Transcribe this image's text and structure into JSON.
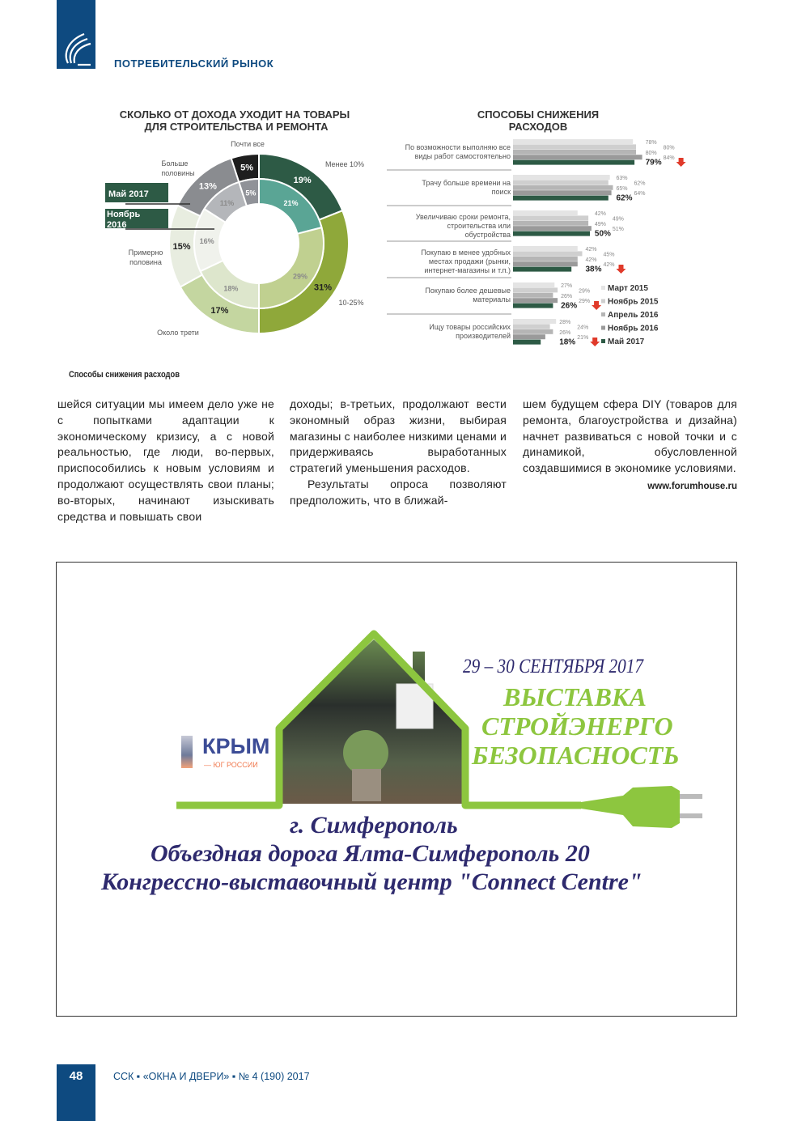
{
  "header": {
    "section": "ПОТРЕБИТЕЛЬСКИЙ РЫНОК",
    "logo": "ssk-logo",
    "brand_color": "#0e4a80"
  },
  "chart_data": [
    {
      "type": "donut",
      "title": "СКОЛЬКО ОТ ДОХОДА УХОДИТ НА ТОВАРЫ ДЛЯ СТРОИТЕЛЬСТВА И РЕМОНТА",
      "categories": [
        "Менее 10%",
        "10-25%",
        "Около трети",
        "Примерно половина",
        "Больше половины",
        "Почти все"
      ],
      "category_labels": {
        "c0": "Менее 10%",
        "c1": "10-25%",
        "c2": "Около трети",
        "c3": "Примерно",
        "c3b": "половина",
        "c4": "Больше",
        "c4b": "половины",
        "c5": "Почти все"
      },
      "series": [
        {
          "name": "Май 2017",
          "ring": "outer",
          "values": [
            19,
            31,
            17,
            15,
            13,
            5
          ],
          "colors": [
            "#2d5a45",
            "#8fa83a",
            "#c4d6a0",
            "#e8ede0",
            "#8a8c90",
            "#1e1e1e"
          ]
        },
        {
          "name": "Ноябрь 2016",
          "ring": "inner",
          "values": [
            21,
            29,
            18,
            16,
            11,
            5
          ],
          "colors": [
            "#5aa595",
            "#c0d090",
            "#dde6cc",
            "#f0f2ec",
            "#b4b6ba",
            "#909298"
          ]
        }
      ],
      "legend": {
        "may": "Май 2017",
        "nov": "Ноябрь 2016"
      }
    },
    {
      "type": "bar",
      "orientation": "horizontal",
      "title_l1": "СПОСОБЫ СНИЖЕНИЯ",
      "title_l2": "РАСХОДОВ",
      "categories": [
        [
          "По возможности выполняю все",
          "виды работ самостоятельно"
        ],
        [
          "Трачу больше времени на",
          "поиск"
        ],
        [
          "Увеличиваю сроки ремонта,",
          "строительства или",
          "обустройства"
        ],
        [
          "Покупаю в менее удобных",
          "местах продажи (рынки,",
          "интернет-магазины и т.п.)"
        ],
        [
          "Покупаю более дешевые",
          "материалы"
        ],
        [
          "Ищу товары российских",
          "производителей"
        ]
      ],
      "series": [
        {
          "name": "Март 2015",
          "color": "#e4e4e4",
          "values": [
            78,
            63,
            42,
            42,
            27,
            28
          ]
        },
        {
          "name": "Ноябрь 2015",
          "color": "#cfcfcf",
          "values": [
            80,
            62,
            49,
            45,
            29,
            24
          ]
        },
        {
          "name": "Апрель 2016",
          "color": "#b5b5b5",
          "values": [
            80,
            65,
            49,
            42,
            26,
            26
          ]
        },
        {
          "name": "Ноябрь 2016",
          "color": "#9a9a9a",
          "values": [
            84,
            64,
            51,
            42,
            29,
            21
          ]
        },
        {
          "name": "Май 2017",
          "color": "#2d5a45",
          "values": [
            79,
            62,
            50,
            38,
            26,
            18
          ]
        }
      ],
      "down_arrows": [
        true,
        false,
        false,
        true,
        true,
        true
      ],
      "legend_placement": "bottom-right"
    }
  ],
  "caption": "Способы снижения расходов",
  "columns": [
    [
      "шейся ситуации мы имеем дело уже не с попытками адаптации к экономическому кризису, а с новой реальностью, где люди, во-первых, приспособились к новым условиям и продолжают осуществлять свои планы; во-вторых, начинают изыскивать средства и повышать свои"
    ],
    [
      "доходы; в-третьих, продолжают вести экономный образ жизни, выбирая магазины с наиболее низкими ценами и придерживаясь выработанных стратегий уменьшения расходов.",
      "Результаты опроса позволяют предположить, что в ближай-"
    ],
    [
      "шем будущем сфера DIY (товаров для ремонта, благоустройства и дизайна) начнет развиваться с новой точки и с динамикой, обусловленной создавшимися в экономике условиями."
    ]
  ],
  "source": "www.forumhouse.ru",
  "ad": {
    "dates": "29 – 30 СЕНТЯБРЯ 2017",
    "title1": "ВЫСТАВКА",
    "title2": "СТРОЙЭНЕРГО",
    "title3": "БЕЗОПАСНОСТЬ",
    "logo_text": "КРЫМ",
    "logo_sub": "— ЮГ РОССИИ",
    "city": "г. Симферополь",
    "address": "Объездная дорога Ялта-Симферополь 20",
    "venue": "Конгрессно-выставочный центр \"Connect Centre\"",
    "green": "#8dc63f",
    "navy": "#2e2a6e"
  },
  "footer": {
    "page": "48",
    "text": "ССК ▪ «ОКНА И ДВЕРИ» ▪ № 4 (190) 2017"
  }
}
